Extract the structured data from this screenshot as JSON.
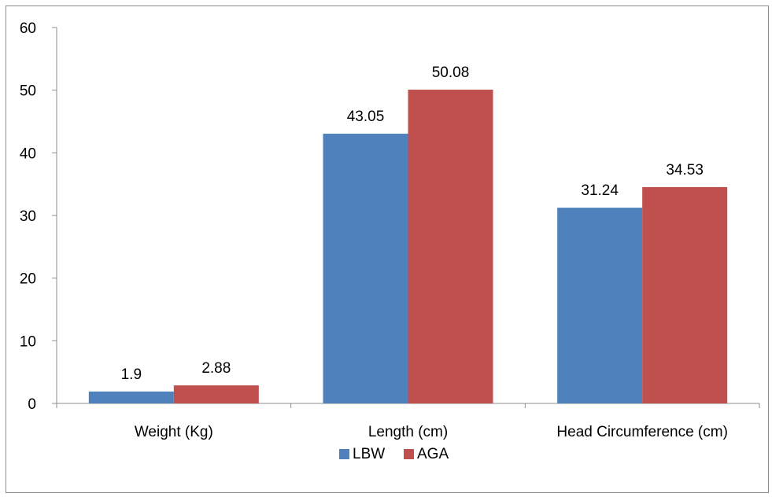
{
  "chart_data": {
    "type": "bar",
    "title": "",
    "xlabel": "",
    "ylabel": "",
    "categories": [
      "Weight (Kg)",
      "Length (cm)",
      "Head Circumference (cm)"
    ],
    "series": [
      {
        "name": "LBW",
        "values": [
          1.9,
          43.05,
          31.24
        ],
        "color": "#4f81bd"
      },
      {
        "name": "AGA",
        "values": [
          2.88,
          50.08,
          34.53
        ],
        "color": "#c0504d"
      }
    ],
    "data_labels": [
      [
        "1.9",
        "43.05",
        "31.24"
      ],
      [
        "2.88",
        "50.08",
        "34.53"
      ]
    ],
    "ylim": [
      0,
      60
    ],
    "yticks": [
      "0",
      "10",
      "20",
      "30",
      "40",
      "50",
      "60"
    ],
    "grid": false,
    "legend_position": "bottom"
  }
}
